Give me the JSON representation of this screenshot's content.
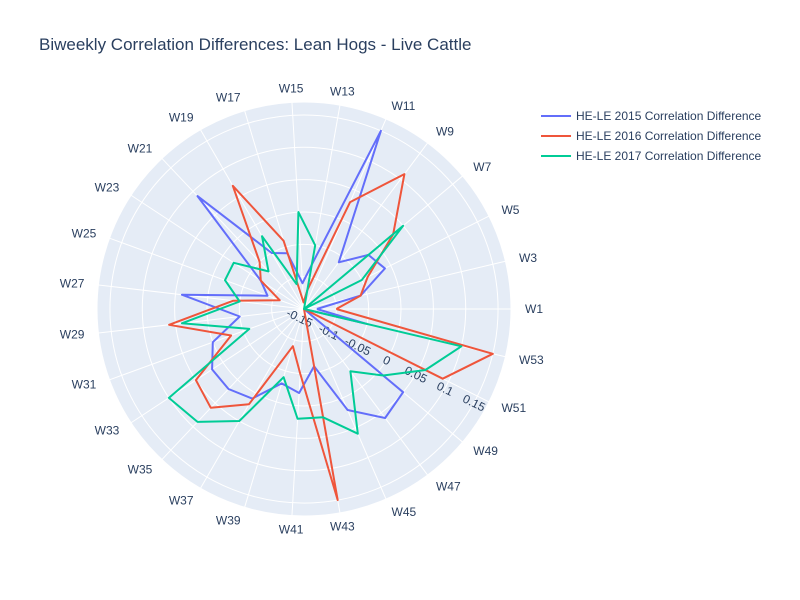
{
  "chart_data": {
    "type": "line",
    "subtype": "polar",
    "title": "Biweekly Correlation Differences: Lean Hogs - Live Cattle",
    "angular_categories": [
      "W1",
      "W3",
      "W5",
      "W7",
      "W9",
      "W11",
      "W13",
      "W15",
      "W17",
      "W19",
      "W21",
      "W23",
      "W25",
      "W27",
      "W29",
      "W31",
      "W33",
      "W35",
      "W37",
      "W39",
      "W41",
      "W43",
      "W45",
      "W47",
      "W49",
      "W51",
      "W53"
    ],
    "radial_range": [
      -0.15,
      0.17
    ],
    "radial_ticks": [
      -0.15,
      -0.1,
      -0.05,
      0,
      0.05,
      0.1,
      0.15
    ],
    "radial_tick_labels": [
      "-0.15",
      "-0.1",
      "-0.05",
      "0",
      "0.05",
      "0.1",
      "0.15"
    ],
    "grid": true,
    "legend_position": "top-right",
    "background_color": "#e5ecf6",
    "series": [
      {
        "name": "HE-LE 2015 Correlation Difference",
        "color": "#636efa",
        "values": [
          -0.13,
          -0.06,
          -0.01,
          -0.02,
          -0.06,
          0.15,
          -0.08,
          -0.11,
          -0.06,
          -0.05,
          0.09,
          -0.07,
          -0.09,
          0.04,
          -0.05,
          0.0,
          0.02,
          0.02,
          0.01,
          -0.03,
          -0.02,
          -0.06,
          0.02,
          0.06,
          0.05,
          -0.15,
          -0.05
        ]
      },
      {
        "name": "HE-LE 2016 Correlation Difference",
        "color": "#ef553b",
        "values": [
          -0.1,
          -0.06,
          -0.04,
          0.03,
          0.11,
          0.03,
          -0.12,
          -0.14,
          -0.04,
          0.07,
          -0.05,
          -0.07,
          -0.11,
          -0.04,
          0.06,
          -0.03,
          0.05,
          0.06,
          0.02,
          -0.09,
          -0.05,
          0.15,
          -0.15,
          -0.15,
          -0.15,
          0.09,
          0.15
        ]
      },
      {
        "name": "HE-LE 2017 Correlation Difference",
        "color": "#00cc96",
        "values": [
          -0.15,
          -0.15,
          -0.05,
          0.05,
          -0.15,
          -0.15,
          -0.05,
          0.0,
          -0.11,
          -0.02,
          -0.07,
          -0.02,
          -0.02,
          -0.05,
          0.04,
          -0.06,
          0.1,
          0.09,
          0.05,
          -0.04,
          0.02,
          0.02,
          0.06,
          -0.03,
          0.01,
          0.06,
          0.1
        ]
      }
    ]
  }
}
